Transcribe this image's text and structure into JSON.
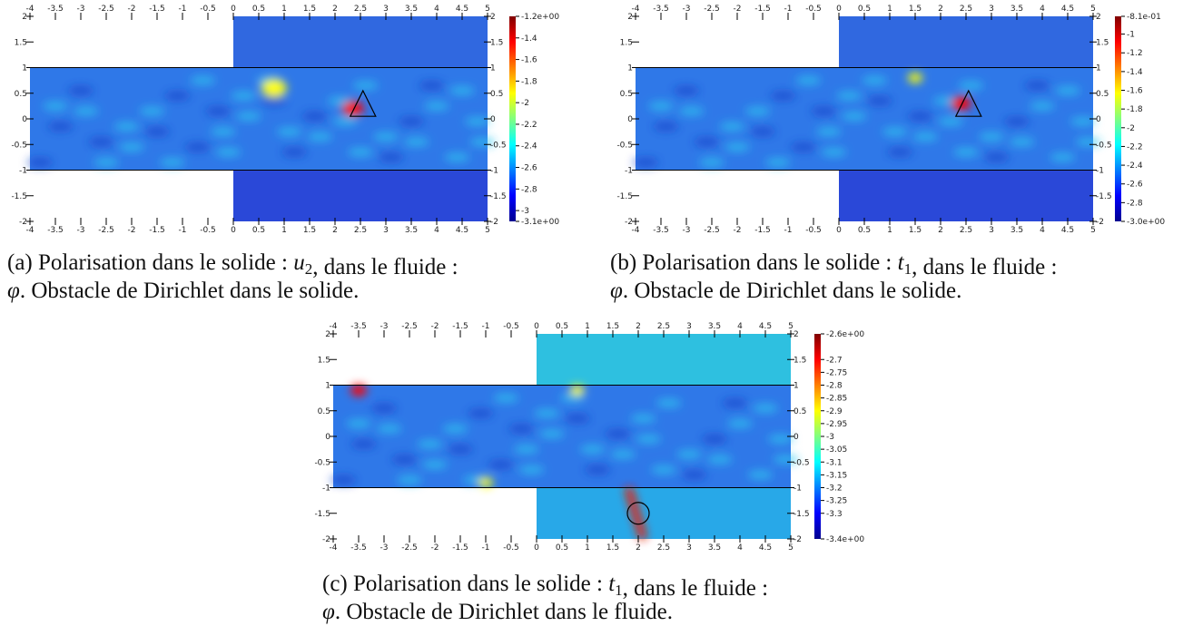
{
  "figures": [
    {
      "xticks": [
        -4,
        -3.5,
        -3,
        -2.5,
        -2,
        -1.5,
        -1,
        -0.5,
        0,
        0.5,
        1,
        1.5,
        2,
        2.5,
        3,
        3.5,
        4,
        4.5,
        5
      ],
      "yticks": [
        2,
        1.5,
        1,
        0.5,
        0,
        -0.5,
        -1,
        -1.5,
        -2
      ],
      "colorbar": {
        "clim": [
          -3.1,
          -1.2
        ],
        "ticks": [
          {
            "value": -1.2,
            "label": "-1.2e+00"
          },
          -1.4,
          -1.6,
          -1.8,
          -2,
          -2.2,
          -2.4,
          -2.6,
          -2.8,
          -3,
          {
            "value": -3.1,
            "label": "-3.1e+00"
          }
        ]
      },
      "caption": [
        [
          {
            "text": "(a) Polarisation dans le solide : "
          },
          {
            "math": "u",
            "sub": "2"
          },
          {
            "text": ", dans le fluide :"
          }
        ],
        [
          {
            "math": "φ"
          },
          {
            "text": ". Obstacle de Dirichlet dans le solide."
          }
        ]
      ]
    },
    {
      "xticks": [
        -4,
        -3.5,
        -3,
        -2.5,
        -2,
        -1.5,
        -1,
        -0.5,
        0,
        0.5,
        1,
        1.5,
        2,
        2.5,
        3,
        3.5,
        4,
        4.5,
        5
      ],
      "yticks": [
        2,
        1.5,
        1,
        0.5,
        0,
        -0.5,
        -1,
        -1.5,
        -2
      ],
      "colorbar": {
        "clim": [
          -3.0,
          -0.81
        ],
        "ticks": [
          {
            "value": -0.81,
            "label": "-8.1e-01"
          },
          -1,
          -1.2,
          -1.4,
          -1.6,
          -1.8,
          -2,
          -2.2,
          -2.4,
          -2.6,
          -2.8,
          {
            "value": -3.0,
            "label": "-3.0e+00"
          }
        ]
      },
      "caption": [
        [
          {
            "text": "(b) Polarisation dans le solide : "
          },
          {
            "math": "t",
            "sub": "1"
          },
          {
            "text": ", dans le fluide :"
          }
        ],
        [
          {
            "math": "φ"
          },
          {
            "text": ". Obstacle de Dirichlet dans le solide."
          }
        ]
      ]
    },
    {
      "xticks": [
        -4,
        -3.5,
        -3,
        -2.5,
        -2,
        -1.5,
        -1,
        -0.5,
        0,
        0.5,
        1,
        1.5,
        2,
        2.5,
        3,
        3.5,
        4,
        4.5,
        5
      ],
      "yticks": [
        2,
        1.5,
        1,
        0.5,
        0,
        -0.5,
        -1,
        -1.5,
        -2
      ],
      "colorbar": {
        "clim": [
          -3.4,
          -2.6
        ],
        "ticks": [
          {
            "value": -2.6,
            "label": "-2.6e+00"
          },
          -2.7,
          -2.75,
          -2.8,
          -2.85,
          -2.9,
          -2.95,
          -3,
          -3.05,
          -3.1,
          -3.15,
          -3.2,
          -3.25,
          -3.3,
          {
            "value": -3.4,
            "label": "-3.4e+00"
          }
        ]
      },
      "caption": [
        [
          {
            "text": "(c) Polarisation dans le solide : "
          },
          {
            "math": "t",
            "sub": "1"
          },
          {
            "text": ", dans le fluide :"
          }
        ],
        [
          {
            "math": "φ"
          },
          {
            "text": ". Obstacle de Dirichlet dans le fluide."
          }
        ]
      ]
    }
  ]
}
